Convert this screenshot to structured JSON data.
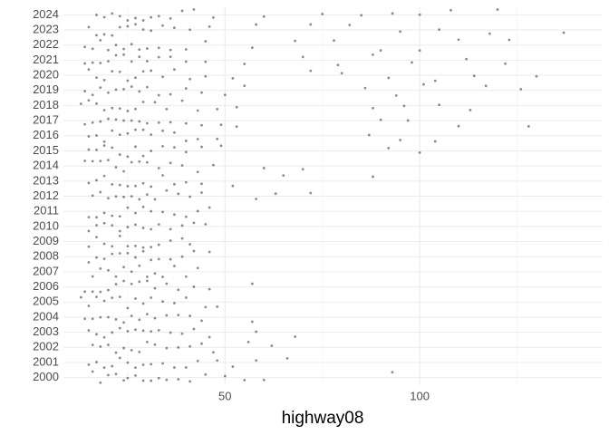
{
  "chart_data": {
    "type": "scatter",
    "x_label": "highway08",
    "categories": [
      "2000",
      "2001",
      "2002",
      "2003",
      "2004",
      "2005",
      "2006",
      "2007",
      "2008",
      "2009",
      "2010",
      "2011",
      "2012",
      "2013",
      "2014",
      "2015",
      "2016",
      "2017",
      "2018",
      "2019",
      "2020",
      "2021",
      "2022",
      "2023",
      "2024"
    ],
    "values": [
      [
        16,
        18,
        20,
        22,
        24,
        25,
        27,
        29,
        31,
        33,
        35,
        38,
        41,
        45,
        50,
        55,
        60,
        93
      ],
      [
        15,
        17,
        19,
        21,
        23,
        25,
        27,
        29,
        31,
        34,
        37,
        40,
        43,
        48,
        52,
        58,
        66
      ],
      [
        16,
        18,
        20,
        22,
        24,
        26,
        28,
        30,
        32,
        35,
        38,
        41,
        44,
        47,
        56,
        62
      ],
      [
        15,
        17,
        19,
        21,
        23,
        25,
        27,
        29,
        31,
        33,
        36,
        39,
        42,
        46,
        58,
        68
      ],
      [
        14,
        16,
        18,
        20,
        22,
        24,
        26,
        28,
        30,
        32,
        35,
        38,
        41,
        44,
        57
      ],
      [
        13,
        15,
        17,
        19,
        21,
        23,
        25,
        27,
        29,
        31,
        34,
        37,
        40,
        45,
        48
      ],
      [
        14,
        16,
        18,
        20,
        22,
        24,
        26,
        28,
        30,
        32,
        35,
        38,
        42,
        46,
        57
      ],
      [
        16,
        18,
        20,
        22,
        24,
        26,
        28,
        30,
        32,
        34,
        37,
        40,
        43
      ],
      [
        15,
        17,
        19,
        21,
        23,
        25,
        27,
        29,
        31,
        33,
        36,
        39,
        42,
        46
      ],
      [
        15,
        17,
        19,
        21,
        23,
        25,
        27,
        29,
        31,
        33,
        36,
        39,
        41
      ],
      [
        15,
        17,
        19,
        21,
        23,
        25,
        27,
        29,
        31,
        33,
        36,
        39,
        42,
        45
      ],
      [
        15,
        17,
        19,
        21,
        23,
        25,
        27,
        29,
        31,
        34,
        37,
        40,
        43,
        46
      ],
      [
        16,
        18,
        20,
        22,
        24,
        26,
        28,
        30,
        32,
        35,
        38,
        41,
        44,
        58,
        63,
        72
      ],
      [
        15,
        17,
        19,
        21,
        23,
        25,
        27,
        29,
        31,
        34,
        37,
        40,
        44,
        52,
        65,
        88
      ],
      [
        14,
        16,
        18,
        20,
        22,
        24,
        26,
        28,
        30,
        33,
        36,
        39,
        43,
        47,
        60,
        70
      ],
      [
        15,
        17,
        19,
        21,
        23,
        25,
        27,
        29,
        31,
        34,
        37,
        40,
        44,
        49,
        92,
        100
      ],
      [
        15,
        17,
        19,
        21,
        23,
        25,
        27,
        29,
        31,
        34,
        37,
        40,
        43,
        48,
        87,
        95,
        104
      ],
      [
        14,
        16,
        18,
        20,
        22,
        24,
        26,
        28,
        30,
        33,
        36,
        40,
        44,
        49,
        53,
        90,
        97,
        110,
        128
      ],
      [
        13,
        15,
        17,
        19,
        21,
        23,
        25,
        27,
        29,
        32,
        35,
        39,
        43,
        48,
        53,
        88,
        96,
        105,
        113
      ],
      [
        14,
        16,
        18,
        20,
        22,
        24,
        26,
        28,
        30,
        33,
        36,
        40,
        44,
        50,
        55,
        86,
        94,
        101,
        117,
        126
      ],
      [
        15,
        17,
        19,
        21,
        23,
        25,
        27,
        29,
        31,
        34,
        37,
        41,
        45,
        52,
        72,
        80,
        92,
        104,
        114,
        130
      ],
      [
        14,
        16,
        18,
        20,
        22,
        24,
        26,
        28,
        30,
        33,
        36,
        40,
        45,
        55,
        70,
        79,
        88,
        98,
        112,
        122
      ],
      [
        14,
        16,
        18,
        20,
        22,
        24,
        26,
        28,
        30,
        33,
        36,
        40,
        45,
        57,
        68,
        78,
        90,
        100,
        110,
        123
      ],
      [
        15,
        17,
        19,
        21,
        23,
        25,
        27,
        29,
        31,
        34,
        37,
        41,
        46,
        58,
        72,
        82,
        95,
        105,
        118,
        137
      ],
      [
        17,
        19,
        21,
        23,
        25,
        27,
        29,
        31,
        33,
        36,
        39,
        42,
        47,
        60,
        75,
        85,
        93,
        100,
        108,
        120
      ]
    ],
    "color": "#000000",
    "xlim": [
      8.5,
      147
    ],
    "xticks": [
      50,
      100
    ],
    "xminor": [
      25,
      75,
      125
    ],
    "grid": true
  }
}
